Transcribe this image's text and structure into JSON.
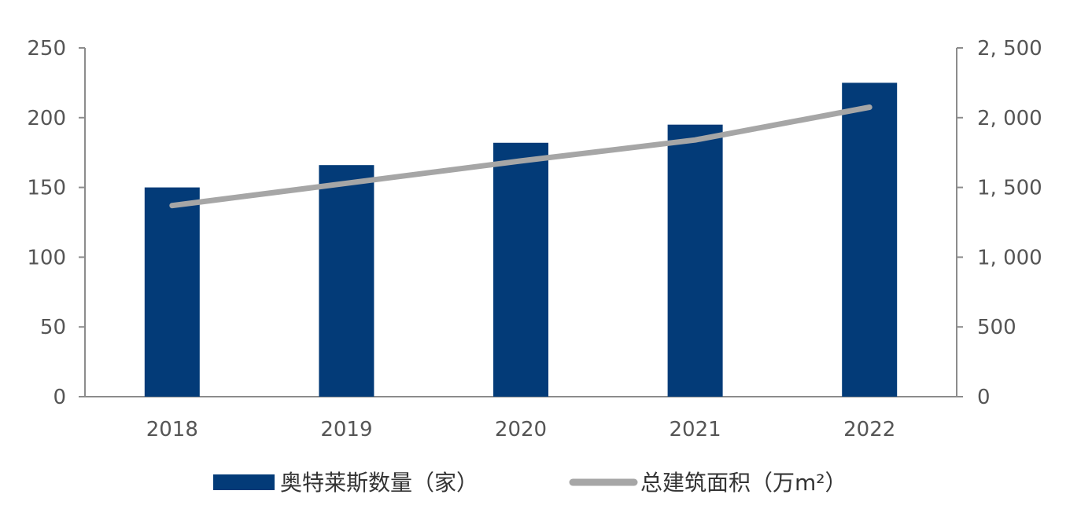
{
  "chart_data": {
    "type": "bar",
    "categories": [
      "2018",
      "2019",
      "2020",
      "2021",
      "2022"
    ],
    "series": [
      {
        "name": "奥特莱斯数量（家）",
        "type": "bar",
        "axis": "left",
        "color": "#033B78",
        "values": [
          150,
          166,
          182,
          195,
          225
        ]
      },
      {
        "name": "总建筑面积（万m²）",
        "type": "line",
        "axis": "right",
        "color": "#A6A6A6",
        "values": [
          1370,
          1530,
          1690,
          1840,
          2075
        ]
      }
    ],
    "y_left": {
      "range": [
        0,
        250
      ],
      "ticks": [
        0,
        50,
        100,
        150,
        200,
        250
      ],
      "tick_labels": [
        "0",
        "50",
        "100",
        "150",
        "200",
        "250"
      ]
    },
    "y_right": {
      "range": [
        0,
        2500
      ],
      "ticks": [
        0,
        500,
        1000,
        1500,
        2000,
        2500
      ],
      "tick_labels": [
        "0",
        "500",
        "1, 000",
        "1, 500",
        "2, 000",
        "2, 500"
      ]
    },
    "grid": false,
    "legend_position": "bottom"
  }
}
